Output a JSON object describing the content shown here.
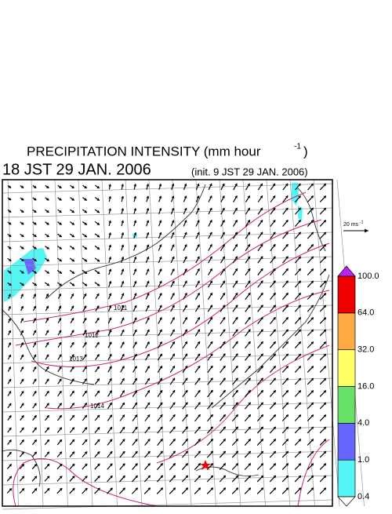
{
  "header": {
    "title": "PRECIPITATION INTENSITY (mm hour",
    "title_exponent": "-1",
    "title_close": ")",
    "valid_time": "18 JST 29 JAN. 2006",
    "init_time": "(init. 9 JST 29 JAN. 2006)"
  },
  "wind_scale": {
    "label": "20 ms",
    "exponent": "-1"
  },
  "isobar_labels": [
    "1011",
    "1012",
    "1013",
    "1014"
  ],
  "legend": {
    "levels": [
      "0.4",
      "1.0",
      "4.0",
      "16.0",
      "32.0",
      "64.0",
      "100.0"
    ],
    "colors": [
      "#55f5f5",
      "#6666ff",
      "#66e066",
      "#ffff66",
      "#ffaa44",
      "#ee0000"
    ],
    "under_color": "#ffffff",
    "over_color": "#bb22ee"
  }
}
